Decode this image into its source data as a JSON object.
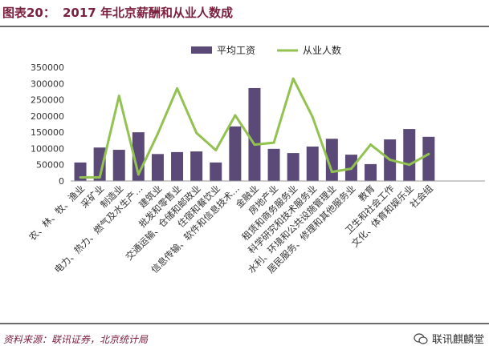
{
  "figure_label": "图表20：",
  "source_text": "资料来源：联讯证券，北京统计局",
  "brand_text": "联讯麒麟堂",
  "colors": {
    "bar": "#5b4a78",
    "line": "#92c24f",
    "accent": "#7a1f3d"
  },
  "chart_data": {
    "type": "bar",
    "title": "2017 年北京薪酬和从业人数成",
    "categories": [
      "农、林、牧、渔业",
      "采矿业",
      "制造业",
      "电力、热力、燃气及水生产…",
      "建筑业",
      "批发和零售业",
      "交通运输、仓储和邮政业",
      "住宿和餐饮业",
      "信息传输、软件和信息技术…",
      "金融业",
      "房地产业",
      "租赁和商务服务业",
      "科学研究和技术服务业",
      "水利、环境和公共设施管理业",
      "居民服务、修理和其他服务业",
      "教育",
      "卫生和社会工作",
      "文化、体育和娱乐业",
      "社会组"
    ],
    "series": [
      {
        "name": "平均工资",
        "type": "bar",
        "values": [
          57000,
          103000,
          96000,
          150000,
          83000,
          89000,
          91000,
          57000,
          168000,
          286000,
          99000,
          86000,
          106000,
          130000,
          81000,
          52000,
          128000,
          160000,
          136000
        ]
      },
      {
        "name": "从业人数",
        "type": "line",
        "values": [
          11000,
          11000,
          262000,
          20000,
          145000,
          285000,
          148000,
          95000,
          202000,
          112000,
          118000,
          315000,
          197000,
          28000,
          38000,
          112000,
          65000,
          50000,
          83000
        ]
      }
    ],
    "yticks": [
      "0",
      "50000",
      "100000",
      "150000",
      "200000",
      "250000",
      "300000",
      "350000"
    ],
    "ylim": [
      0,
      350000
    ],
    "xlabel": "",
    "ylabel": "",
    "legend_position": "top-center",
    "grid": false
  }
}
